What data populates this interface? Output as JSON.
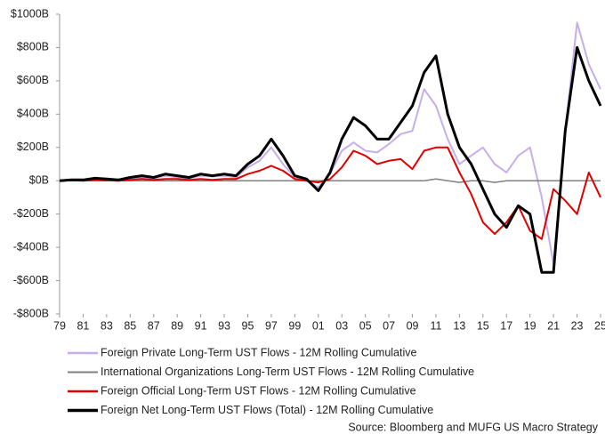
{
  "chart_data": {
    "type": "line",
    "x": [
      1979,
      1980,
      1981,
      1982,
      1983,
      1984,
      1985,
      1986,
      1987,
      1988,
      1989,
      1990,
      1991,
      1992,
      1993,
      1994,
      1995,
      1996,
      1997,
      1998,
      1999,
      2000,
      2001,
      2002,
      2003,
      2004,
      2005,
      2006,
      2007,
      2008,
      2009,
      2010,
      2011,
      2012,
      2013,
      2014,
      2015,
      2016,
      2017,
      2018,
      2019,
      2020,
      2021,
      2022,
      2023,
      2024,
      2025
    ],
    "series": [
      {
        "name": "Foreign Private Long-Term UST Flows - 12M Rolling Cumulative",
        "color": "#c8aee9",
        "values": [
          0,
          3,
          5,
          10,
          8,
          5,
          15,
          20,
          15,
          30,
          20,
          15,
          30,
          25,
          30,
          20,
          80,
          120,
          200,
          100,
          20,
          0,
          -40,
          40,
          180,
          230,
          180,
          170,
          220,
          280,
          300,
          550,
          450,
          250,
          100,
          150,
          200,
          100,
          50,
          150,
          200,
          -100,
          -500,
          300,
          950,
          700,
          550
        ]
      },
      {
        "name": "International Organizations Long-Term UST Flows - 12M Rolling Cumulative",
        "color": "#808080",
        "values": [
          0,
          0,
          0,
          0,
          0,
          0,
          0,
          0,
          0,
          0,
          0,
          0,
          0,
          0,
          0,
          0,
          0,
          0,
          0,
          0,
          0,
          0,
          0,
          0,
          0,
          0,
          0,
          0,
          0,
          0,
          0,
          0,
          10,
          0,
          -10,
          0,
          0,
          -10,
          0,
          0,
          0,
          0,
          0,
          0,
          0,
          0,
          0
        ]
      },
      {
        "name": "Foreign Official Long-Term UST Flows - 12M Rolling Cumulative",
        "color": "#e00000",
        "values": [
          0,
          2,
          0,
          5,
          3,
          0,
          5,
          10,
          5,
          10,
          10,
          5,
          10,
          5,
          10,
          10,
          40,
          60,
          90,
          60,
          10,
          0,
          -10,
          10,
          80,
          180,
          150,
          100,
          120,
          130,
          70,
          180,
          200,
          200,
          50,
          -80,
          -250,
          -320,
          -250,
          -150,
          -300,
          -350,
          -50,
          -120,
          -200,
          50,
          -100
        ]
      },
      {
        "name": "Foreign Net Long-Term UST Flows (Total) - 12M Rolling Cumulative",
        "color": "#000000",
        "values": [
          0,
          5,
          5,
          15,
          10,
          5,
          20,
          30,
          20,
          40,
          30,
          20,
          40,
          30,
          40,
          30,
          100,
          150,
          250,
          150,
          30,
          10,
          -60,
          50,
          250,
          380,
          330,
          250,
          250,
          350,
          450,
          650,
          750,
          400,
          200,
          100,
          -50,
          -200,
          -280,
          -150,
          -200,
          -550,
          -550,
          300,
          800,
          600,
          450
        ]
      }
    ],
    "xlim": [
      1979,
      2025
    ],
    "xticks": [
      {
        "value": 1979,
        "label": "79"
      },
      {
        "value": 1981,
        "label": "81"
      },
      {
        "value": 1983,
        "label": "83"
      },
      {
        "value": 1985,
        "label": "85"
      },
      {
        "value": 1987,
        "label": "87"
      },
      {
        "value": 1989,
        "label": "89"
      },
      {
        "value": 1991,
        "label": "91"
      },
      {
        "value": 1993,
        "label": "93"
      },
      {
        "value": 1995,
        "label": "95"
      },
      {
        "value": 1997,
        "label": "97"
      },
      {
        "value": 1999,
        "label": "99"
      },
      {
        "value": 2001,
        "label": "01"
      },
      {
        "value": 2003,
        "label": "03"
      },
      {
        "value": 2005,
        "label": "05"
      },
      {
        "value": 2007,
        "label": "07"
      },
      {
        "value": 2009,
        "label": "09"
      },
      {
        "value": 2011,
        "label": "11"
      },
      {
        "value": 2013,
        "label": "13"
      },
      {
        "value": 2015,
        "label": "15"
      },
      {
        "value": 2017,
        "label": "17"
      },
      {
        "value": 2019,
        "label": "19"
      },
      {
        "value": 2021,
        "label": "21"
      },
      {
        "value": 2023,
        "label": "23"
      },
      {
        "value": 2025,
        "label": "25"
      }
    ],
    "ylim": [
      -800,
      1000
    ],
    "yticks": [
      {
        "value": -800,
        "label": "-$800B"
      },
      {
        "value": -600,
        "label": "-$600B"
      },
      {
        "value": -400,
        "label": "-$400B"
      },
      {
        "value": -200,
        "label": "-$200B"
      },
      {
        "value": 0,
        "label": "$0B"
      },
      {
        "value": 200,
        "label": "$200B"
      },
      {
        "value": 400,
        "label": "$400B"
      },
      {
        "value": 600,
        "label": "$600B"
      },
      {
        "value": 800,
        "label": "$800B"
      },
      {
        "value": 1000,
        "label": "$1000B"
      }
    ],
    "source": "Source: Bloomberg and MUFG US Macro Strategy"
  }
}
